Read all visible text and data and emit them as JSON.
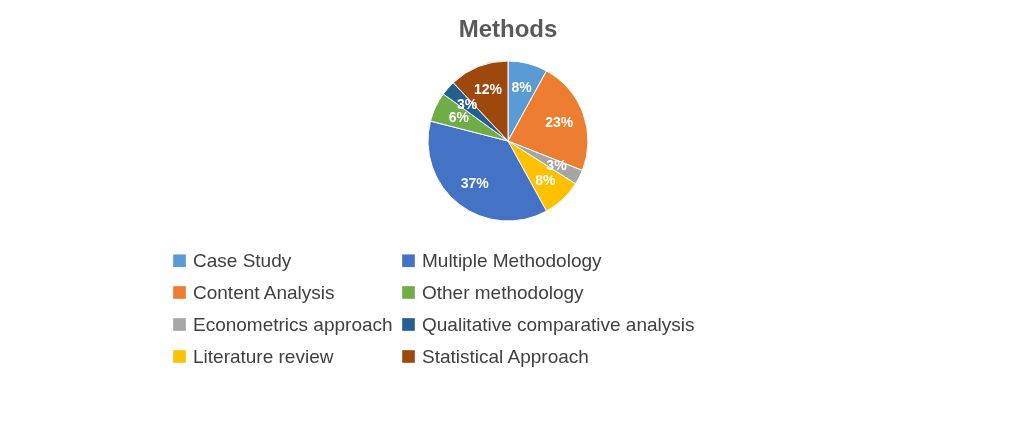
{
  "chart_data": {
    "type": "pie",
    "title": "Methods",
    "categories": [
      "Case Study",
      "Content Analysis",
      "Econometrics approach",
      "Literature review",
      "Multiple Methodology",
      "Other methodology",
      "Qualitative comparative analysis",
      "Statistical Approach"
    ],
    "values": [
      8,
      23,
      3,
      8,
      37,
      6,
      3,
      12
    ],
    "colors": [
      "#5b9bd5",
      "#ed7d31",
      "#a5a5a5",
      "#ffc000",
      "#4472c4",
      "#70ad47",
      "#255e91",
      "#9e480e"
    ],
    "value_labels": [
      "8%",
      "23%",
      "3%",
      "8%",
      "37%",
      "6%",
      "3%",
      "12%"
    ],
    "legend": "bottom"
  }
}
